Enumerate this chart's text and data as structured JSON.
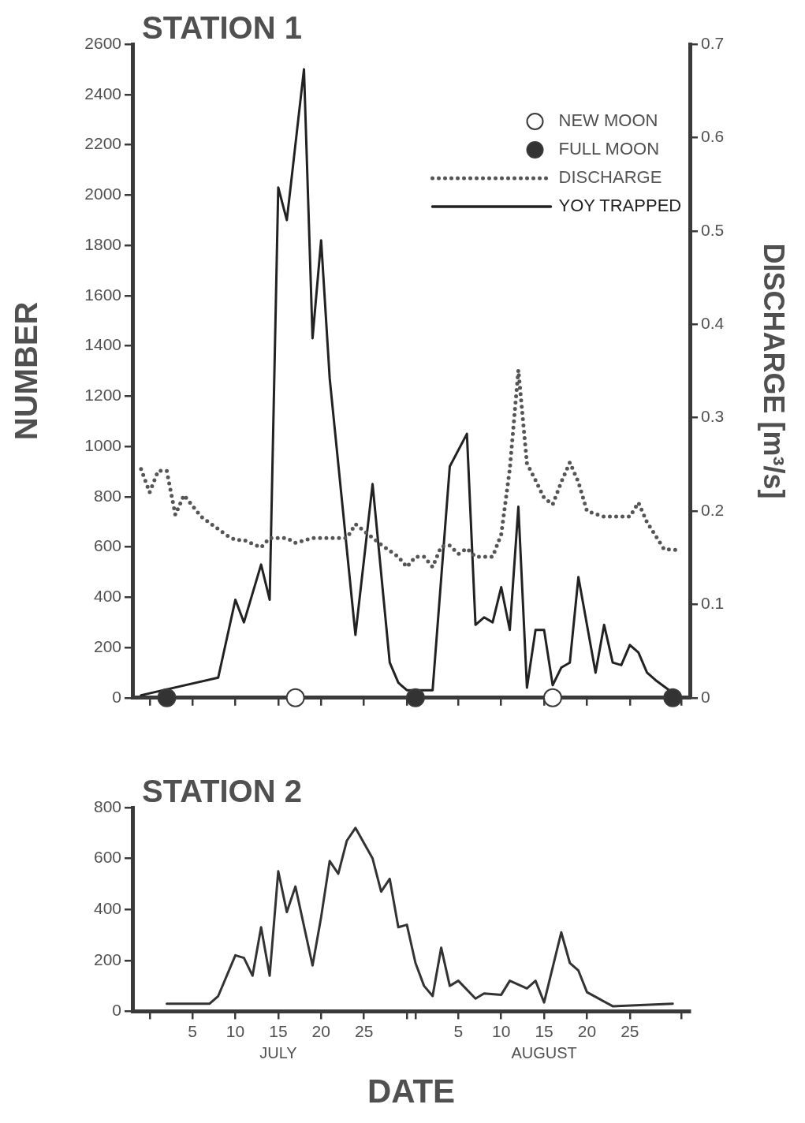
{
  "chart_data": [
    {
      "type": "line",
      "title": "STATION 1",
      "ylabel": "NUMBER",
      "y2label": "DISCHARGE [m³/s]",
      "legend": "top right",
      "xlim": [
        "--06-28",
        "--09-01"
      ],
      "tick_labels": "y",
      "xticks": [
        {
          "value": "--06-30",
          "label": null
        },
        {
          "value": "--07-05",
          "label": "5"
        },
        {
          "value": "--07-10",
          "label": "10"
        },
        {
          "value": "--07-15",
          "label": "15"
        },
        {
          "value": "--07-20",
          "label": "20"
        },
        {
          "value": "--07-25",
          "label": "25"
        },
        {
          "value": "--07-30",
          "label": null
        },
        {
          "value": "--07-31",
          "label": null
        },
        {
          "value": "--08-05",
          "label": "5"
        },
        {
          "value": "--08-10",
          "label": "10"
        },
        {
          "value": "--08-15",
          "label": "15"
        },
        {
          "value": "--08-20",
          "label": "20"
        },
        {
          "value": "--08-25",
          "label": "25"
        },
        {
          "value": "--08-31",
          "label": null
        }
      ],
      "ylim": [
        0,
        2600
      ],
      "yticks": [
        0,
        200,
        400,
        600,
        800,
        1000,
        1200,
        1400,
        1600,
        1800,
        2000,
        2200,
        2400,
        2600
      ],
      "y2lim": [
        0,
        0.7
      ],
      "y2ticks": [
        0,
        0.1,
        0.2,
        0.3,
        0.4,
        0.5,
        0.6,
        0.7
      ],
      "series": [
        {
          "name": "NEW MOON",
          "type": "scatter",
          "marker": "circle",
          "color": "#ffffff",
          "x": [
            "--07-17",
            "--08-16"
          ],
          "values": [
            0,
            0
          ]
        },
        {
          "name": "FULL MOON",
          "type": "scatter",
          "marker": "circle",
          "color": "#333333",
          "x": [
            "--07-02",
            "--07-31",
            "--08-30"
          ],
          "values": [
            0,
            0,
            0
          ]
        },
        {
          "name": "DISCHARGE",
          "type": "line",
          "axis": "y2",
          "line_style": "dotted",
          "color": "#555555",
          "x": [
            "--06-29",
            "--06-30",
            "--07-01",
            "--07-02",
            "--07-03",
            "--07-04",
            "--07-06",
            "--07-09",
            "--07-10",
            "--07-11",
            "--07-13",
            "--07-14",
            "--07-16",
            "--07-17",
            "--07-19",
            "--07-23",
            "--07-24",
            "--07-27",
            "--07-29",
            "--07-30",
            "--07-31",
            "--08-01",
            "--08-02",
            "--08-03",
            "--08-04",
            "--08-05",
            "--08-06",
            "--08-07",
            "--08-09",
            "--08-10",
            "--08-11",
            "--08-12",
            "--08-13",
            "--08-14",
            "--08-15",
            "--08-16",
            "--08-17",
            "--08-18",
            "--08-19",
            "--08-20",
            "--08-22",
            "--08-25",
            "--08-26",
            "--08-27",
            "--08-29",
            "--08-31"
          ],
          "values": [
            0.245,
            0.22,
            0.243,
            0.243,
            0.196,
            0.217,
            0.194,
            0.174,
            0.169,
            0.169,
            0.161,
            0.171,
            0.171,
            0.166,
            0.171,
            0.171,
            0.186,
            0.164,
            0.151,
            0.14,
            0.151,
            0.151,
            0.14,
            0.162,
            0.163,
            0.154,
            0.16,
            0.151,
            0.151,
            0.175,
            0.245,
            0.351,
            0.251,
            0.233,
            0.214,
            0.207,
            0.231,
            0.252,
            0.231,
            0.2,
            0.194,
            0.194,
            0.209,
            0.188,
            0.159,
            0.158
          ]
        },
        {
          "name": "YOY TRAPPED",
          "type": "line",
          "line_style": "solid",
          "color": "#222222",
          "x": [
            "--06-29",
            "--07-08",
            "--07-10",
            "--07-11",
            "--07-13",
            "--07-14",
            "--07-15",
            "--07-16",
            "--07-18",
            "--07-19",
            "--07-20",
            "--07-21",
            "--07-24",
            "--07-26",
            "--07-28",
            "--07-29",
            "--07-30",
            "--08-02",
            "--08-04",
            "--08-06",
            "--08-07",
            "--08-08",
            "--08-09",
            "--08-10",
            "--08-11",
            "--08-12",
            "--08-13",
            "--08-14",
            "--08-15",
            "--08-16",
            "--08-17",
            "--08-18",
            "--08-19",
            "--08-21",
            "--08-22",
            "--08-23",
            "--08-24",
            "--08-25",
            "--08-26",
            "--08-27",
            "--08-28",
            "--08-30"
          ],
          "values": [
            10,
            80,
            390,
            300,
            530,
            390,
            2030,
            1900,
            2500,
            1430,
            1820,
            1270,
            250,
            850,
            140,
            60,
            30,
            30,
            920,
            1050,
            290,
            320,
            300,
            440,
            270,
            760,
            40,
            270,
            270,
            50,
            120,
            140,
            480,
            100,
            290,
            140,
            130,
            210,
            180,
            100,
            70,
            20
          ]
        }
      ]
    },
    {
      "type": "line",
      "title": "STATION 2",
      "xlabel": "DATE",
      "annotations": [
        "JULY",
        "AUGUST"
      ],
      "xlim": [
        "--06-28",
        "--09-01"
      ],
      "xticks": [
        {
          "value": "--06-30",
          "label": null
        },
        {
          "value": "--07-05",
          "label": "5"
        },
        {
          "value": "--07-10",
          "label": "10"
        },
        {
          "value": "--07-15",
          "label": "15"
        },
        {
          "value": "--07-20",
          "label": "20"
        },
        {
          "value": "--07-25",
          "label": "25"
        },
        {
          "value": "--07-30",
          "label": null
        },
        {
          "value": "--07-31",
          "label": null
        },
        {
          "value": "--08-05",
          "label": "5"
        },
        {
          "value": "--08-10",
          "label": "10"
        },
        {
          "value": "--08-15",
          "label": "15"
        },
        {
          "value": "--08-20",
          "label": "20"
        },
        {
          "value": "--08-25",
          "label": "25"
        },
        {
          "value": "--08-31",
          "label": null
        }
      ],
      "ylim": [
        0,
        800
      ],
      "yticks": [
        0,
        200,
        400,
        600,
        800
      ],
      "color": "#333333",
      "line_style": "solid",
      "x": [
        "--07-02",
        "--07-07",
        "--07-08",
        "--07-10",
        "--07-11",
        "--07-12",
        "--07-13",
        "--07-14",
        "--07-15",
        "--07-16",
        "--07-17",
        "--07-19",
        "--07-20",
        "--07-21",
        "--07-22",
        "--07-23",
        "--07-24",
        "--07-26",
        "--07-27",
        "--07-28",
        "--07-29",
        "--07-30",
        "--07-31",
        "--08-01",
        "--08-02",
        "--08-03",
        "--08-04",
        "--08-05",
        "--08-07",
        "--08-08",
        "--08-10",
        "--08-11",
        "--08-13",
        "--08-14",
        "--08-15",
        "--08-17",
        "--08-18",
        "--08-19",
        "--08-20",
        "--08-23",
        "--08-30"
      ],
      "values": [
        30,
        30,
        60,
        220,
        210,
        140,
        330,
        140,
        550,
        390,
        490,
        180,
        370,
        590,
        540,
        670,
        720,
        600,
        470,
        520,
        330,
        340,
        190,
        100,
        60,
        250,
        100,
        120,
        50,
        70,
        65,
        120,
        90,
        120,
        35,
        310,
        190,
        160,
        75,
        20,
        30
      ]
    }
  ]
}
